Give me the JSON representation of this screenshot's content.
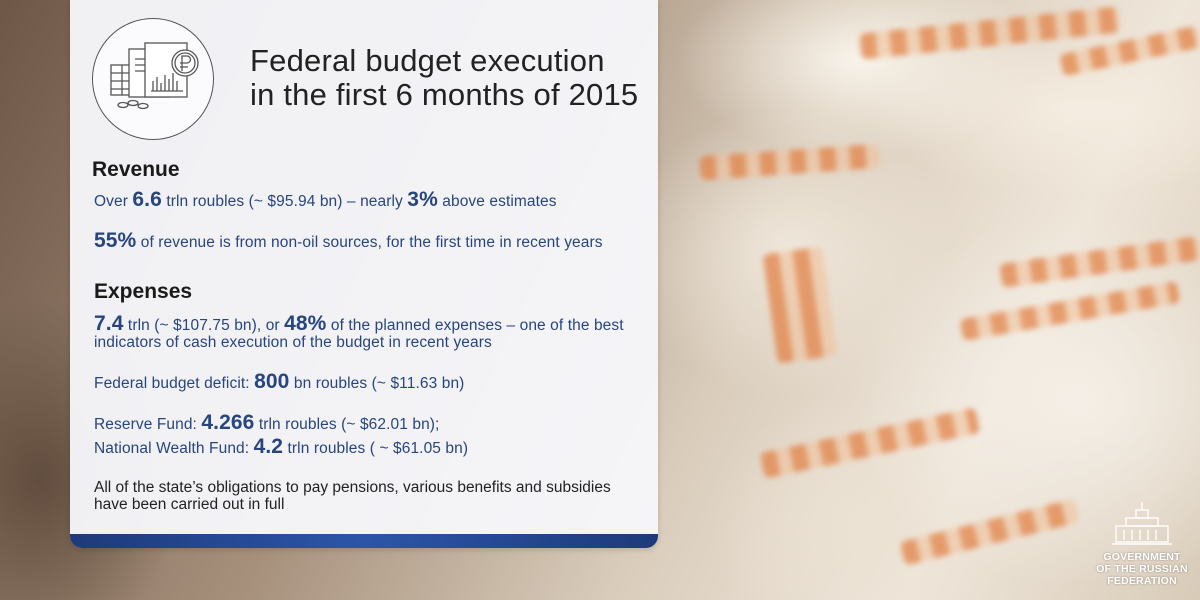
{
  "title_lines": [
    "Federal budget execution",
    "in the first 6 months of 2015"
  ],
  "revenue": {
    "heading": "Revenue",
    "line1": {
      "a": "Over ",
      "b": "6.6",
      "c": " trln roubles (~ $95.94 bn) – nearly ",
      "d": "3%",
      "e": " above estimates"
    },
    "line2": {
      "a": "55%",
      "b": " of revenue is from non-oil sources, for the first time in recent years"
    }
  },
  "expenses": {
    "heading": "Expenses",
    "line1": {
      "a": "7.4",
      "b": " trln (~ $107.75 bn), or ",
      "c": "48%",
      "d": " of the planned expenses – one of the best"
    },
    "line1b": "indicators of cash execution of the budget in recent years",
    "deficit": {
      "a": "Federal budget deficit: ",
      "b": "800",
      "c": " bn roubles (~ $11.63 bn)"
    },
    "reserve": {
      "a": "Reserve Fund: ",
      "b": "4.266",
      "c": " trln roubles (~ $62.01 bn);"
    },
    "wealth": {
      "a": "National Wealth Fund: ",
      "b": "4.2",
      "c": " trln roubles ( ~ $61.05 bn)"
    },
    "obligations": [
      "All of the state’s obligations to pay pensions, various benefits and subsidies",
      "have been carried out in full"
    ]
  },
  "emblem": {
    "lines": [
      "GOVERNMENT",
      "OF THE RUSSIAN",
      "FEDERATION"
    ]
  },
  "icons": {
    "budget": "budget-documents-ruble-icon",
    "emblem": "government-building-icon"
  },
  "colors": {
    "accent": "#27457e",
    "bar": "#2b56a8"
  }
}
